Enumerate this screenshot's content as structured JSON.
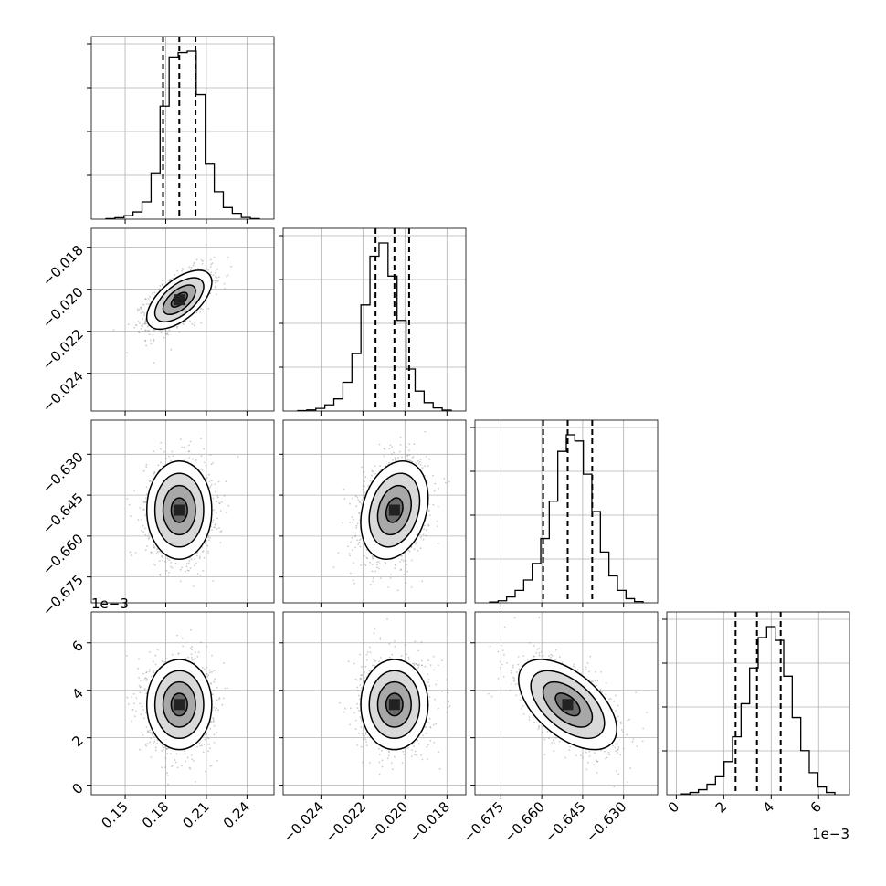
{
  "chart_data": {
    "type": "corner",
    "grid": true,
    "parameters": [
      {
        "range": [
          0.125,
          0.26
        ],
        "ticks": [
          0.15,
          0.18,
          0.21,
          0.24
        ],
        "tick_labels": [
          "0.15",
          "0.18",
          "0.21",
          "0.24"
        ],
        "quantiles": [
          0.178,
          0.19,
          0.202
        ]
      },
      {
        "range": [
          -0.0258,
          -0.0171
        ],
        "ticks": [
          -0.024,
          -0.022,
          -0.02,
          -0.018
        ],
        "tick_labels": [
          "−0.024",
          "−0.022",
          "−0.020",
          "−0.018"
        ],
        "quantiles": [
          -0.0214,
          -0.0205,
          -0.0198
        ]
      },
      {
        "range": [
          -0.6845,
          -0.6175
        ],
        "ticks": [
          -0.675,
          -0.66,
          -0.645,
          -0.63
        ],
        "tick_labels": [
          "−0.675",
          "−0.660",
          "−0.645",
          "−0.630"
        ],
        "quantiles": [
          -0.6595,
          -0.6505,
          -0.6415
        ]
      },
      {
        "range": [
          -0.0004,
          0.0073
        ],
        "ticks": [
          0,
          0.002,
          0.004,
          0.006
        ],
        "tick_labels": [
          "0",
          "2",
          "4",
          "6"
        ],
        "quantiles": [
          0.0025,
          0.0034,
          0.0044
        ],
        "offset_label": "1e−3"
      }
    ],
    "histograms": [
      {
        "counts": [
          2,
          5,
          12,
          25,
          60,
          160,
          390,
          560,
          575,
          580,
          430,
          190,
          95,
          40,
          20,
          6,
          2
        ]
      },
      {
        "counts": [
          2,
          5,
          12,
          28,
          55,
          130,
          260,
          480,
          700,
          760,
          610,
          410,
          190,
          90,
          38,
          14,
          4
        ]
      },
      {
        "counts": [
          4,
          10,
          28,
          60,
          110,
          190,
          310,
          490,
          730,
          810,
          780,
          620,
          440,
          245,
          130,
          60,
          20,
          6
        ]
      },
      {
        "counts": [
          3,
          8,
          18,
          38,
          65,
          120,
          210,
          330,
          460,
          570,
          610,
          560,
          430,
          280,
          160,
          80,
          28,
          8
        ]
      }
    ],
    "pairs": [
      {
        "x": 0,
        "y": 1,
        "center": [
          0.19,
          -0.0205
        ],
        "spread": [
          0.012,
          0.0007
        ],
        "rho": 0.6
      },
      {
        "x": 0,
        "y": 2,
        "center": [
          0.19,
          -0.6505
        ],
        "spread": [
          0.012,
          0.009
        ],
        "rho": 0.0
      },
      {
        "x": 1,
        "y": 2,
        "center": [
          -0.0205,
          -0.6505
        ],
        "spread": [
          0.0008,
          0.009
        ],
        "rho": 0.25
      },
      {
        "x": 0,
        "y": 3,
        "center": [
          0.19,
          0.0034
        ],
        "spread": [
          0.012,
          0.00095
        ],
        "rho": 0.0
      },
      {
        "x": 1,
        "y": 3,
        "center": [
          -0.0205,
          0.0034
        ],
        "spread": [
          0.0008,
          0.00095
        ],
        "rho": 0.0
      },
      {
        "x": 2,
        "y": 3,
        "center": [
          -0.6505,
          0.0034
        ],
        "spread": [
          0.009,
          0.00095
        ],
        "rho": -0.55
      }
    ],
    "contour_levels_sigma": [
      0.5,
      1.0,
      1.5,
      2.0
    ]
  }
}
